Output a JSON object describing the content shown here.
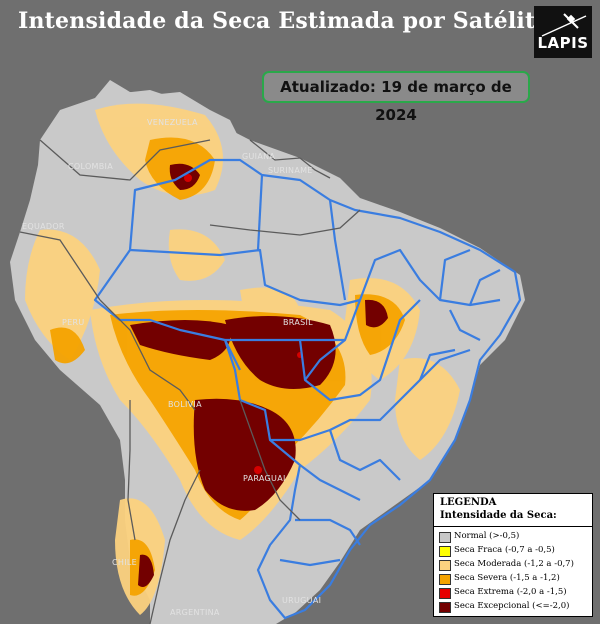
{
  "header": {
    "title": "Intensidade da Seca Estimada por Satélite",
    "logo_text": "LAPIS",
    "updated": "Atualizado: 19 de março de 2024"
  },
  "map": {
    "background_color": "#6f6f6f",
    "land_color": "#c9c9c9",
    "boundary_color": "#3a7de0",
    "countries": [
      "VENEZUELA",
      "COLOMBIA",
      "GUIANA",
      "SURINAME",
      "EQUADOR",
      "PERU",
      "BRASIL",
      "BOLIVIA",
      "PARAGUAI",
      "CHILE",
      "ARGENTINA",
      "URUGUAI"
    ]
  },
  "legend": {
    "title": "LEGENDA",
    "subtitle": "Intensidade da Seca:",
    "items": [
      {
        "label": "Normal (>-0,5)",
        "color": "#c8c8c8"
      },
      {
        "label": "Seca Fraca (-0,7 a -0,5)",
        "color": "#ffff00"
      },
      {
        "label": "Seca Moderada (-1,2 a -0,7)",
        "color": "#fcd27f"
      },
      {
        "label": "Seca Severa (-1,5 a -1,2)",
        "color": "#f5a300"
      },
      {
        "label": "Seca Extrema (-2,0 a -1,5)",
        "color": "#e60000"
      },
      {
        "label": "Seca Excepcional (<=-2,0)",
        "color": "#730000"
      }
    ]
  }
}
